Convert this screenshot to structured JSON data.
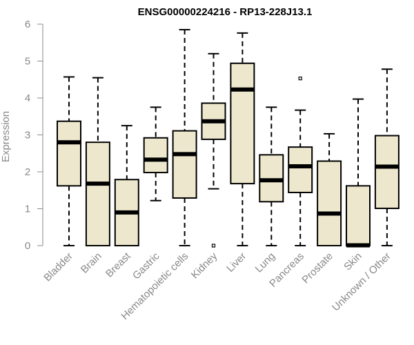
{
  "chart_data": {
    "type": "boxplot",
    "title": "ENSG00000224216 - RP13-228J13.1",
    "xlabel": "",
    "ylabel": "Expression",
    "ylim": [
      0,
      6
    ],
    "yticks": [
      "0",
      "1",
      "2",
      "3",
      "4",
      "5",
      "6"
    ],
    "categories": [
      "Bladder",
      "Brain",
      "Breast",
      "Gastric",
      "Hematopoietic cells",
      "Kidney",
      "Liver",
      "Lung",
      "Pancreas",
      "Prostate",
      "Skin",
      "Unknown / Other"
    ],
    "boxes": [
      {
        "whisker_low": 0.0,
        "q1": 1.62,
        "median": 2.8,
        "q3": 3.37,
        "whisker_high": 4.57,
        "outliers": []
      },
      {
        "whisker_low": 0.0,
        "q1": 0.0,
        "median": 1.68,
        "q3": 2.8,
        "whisker_high": 4.55,
        "outliers": []
      },
      {
        "whisker_low": 0.0,
        "q1": 0.0,
        "median": 0.9,
        "q3": 1.79,
        "whisker_high": 3.25,
        "outliers": []
      },
      {
        "whisker_low": 1.22,
        "q1": 1.98,
        "median": 2.33,
        "q3": 2.92,
        "whisker_high": 3.75,
        "outliers": []
      },
      {
        "whisker_low": 0.0,
        "q1": 1.29,
        "median": 2.48,
        "q3": 3.11,
        "whisker_high": 5.85,
        "outliers": []
      },
      {
        "whisker_low": 1.54,
        "q1": 2.88,
        "median": 3.37,
        "q3": 3.86,
        "whisker_high": 5.2,
        "outliers": [
          0.0
        ]
      },
      {
        "whisker_low": 0.0,
        "q1": 1.68,
        "median": 4.23,
        "q3": 4.94,
        "whisker_high": 5.76,
        "outliers": []
      },
      {
        "whisker_low": 0.0,
        "q1": 1.19,
        "median": 1.77,
        "q3": 2.46,
        "whisker_high": 3.75,
        "outliers": []
      },
      {
        "whisker_low": 0.0,
        "q1": 1.44,
        "median": 2.15,
        "q3": 2.67,
        "whisker_high": 3.67,
        "outliers": [
          4.53
        ]
      },
      {
        "whisker_low": 0.0,
        "q1": 0.0,
        "median": 0.87,
        "q3": 2.29,
        "whisker_high": 3.03,
        "outliers": []
      },
      {
        "whisker_low": 0.0,
        "q1": 0.0,
        "median": 0.01,
        "q3": 1.62,
        "whisker_high": 3.97,
        "outliers": []
      },
      {
        "whisker_low": 0.0,
        "q1": 1.01,
        "median": 2.14,
        "q3": 2.98,
        "whisker_high": 4.78,
        "outliers": []
      }
    ],
    "colors": {
      "box_fill": "#ede7cd",
      "box_stroke": "#000000",
      "axis": "#888888",
      "text": "#888888"
    }
  }
}
